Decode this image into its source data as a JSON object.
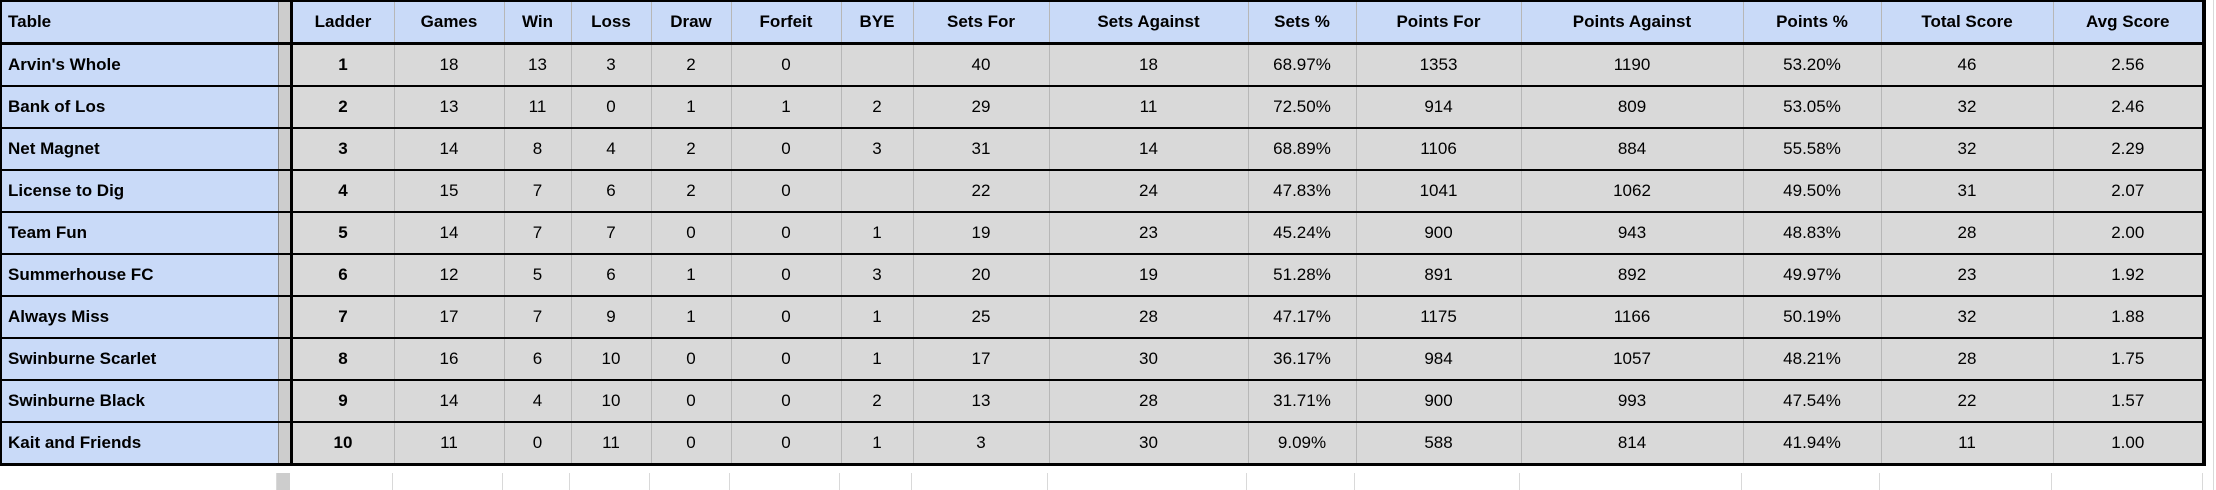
{
  "sheet": {
    "columns": [
      {
        "key": "name",
        "label": "Table"
      },
      {
        "key": "ladder",
        "label": "Ladder"
      },
      {
        "key": "games",
        "label": "Games"
      },
      {
        "key": "win",
        "label": "Win"
      },
      {
        "key": "loss",
        "label": "Loss"
      },
      {
        "key": "draw",
        "label": "Draw"
      },
      {
        "key": "forfeit",
        "label": "Forfeit"
      },
      {
        "key": "bye",
        "label": "BYE"
      },
      {
        "key": "sets_for",
        "label": "Sets For"
      },
      {
        "key": "sets_against",
        "label": "Sets Against"
      },
      {
        "key": "sets_pct",
        "label": "Sets %"
      },
      {
        "key": "points_for",
        "label": "Points For"
      },
      {
        "key": "points_against",
        "label": "Points Against"
      },
      {
        "key": "points_pct",
        "label": "Points %"
      },
      {
        "key": "total_score",
        "label": "Total Score"
      },
      {
        "key": "avg_score",
        "label": "Avg Score"
      }
    ],
    "rows": [
      {
        "name": "Arvin's Whole",
        "ladder": 1,
        "games": 18,
        "win": 13,
        "loss": 3,
        "draw": 2,
        "forfeit": 0,
        "bye": "",
        "sets_for": 40,
        "sets_against": 18,
        "sets_pct": "68.97%",
        "points_for": 1353,
        "points_against": 1190,
        "points_pct": "53.20%",
        "total_score": 46,
        "avg_score": "2.56"
      },
      {
        "name": "Bank of Los",
        "ladder": 2,
        "games": 13,
        "win": 11,
        "loss": 0,
        "draw": 1,
        "forfeit": 1,
        "bye": 2,
        "sets_for": 29,
        "sets_against": 11,
        "sets_pct": "72.50%",
        "points_for": 914,
        "points_against": 809,
        "points_pct": "53.05%",
        "total_score": 32,
        "avg_score": "2.46"
      },
      {
        "name": "Net Magnet",
        "ladder": 3,
        "games": 14,
        "win": 8,
        "loss": 4,
        "draw": 2,
        "forfeit": 0,
        "bye": 3,
        "sets_for": 31,
        "sets_against": 14,
        "sets_pct": "68.89%",
        "points_for": 1106,
        "points_against": 884,
        "points_pct": "55.58%",
        "total_score": 32,
        "avg_score": "2.29"
      },
      {
        "name": "License to Dig",
        "ladder": 4,
        "games": 15,
        "win": 7,
        "loss": 6,
        "draw": 2,
        "forfeit": 0,
        "bye": "",
        "sets_for": 22,
        "sets_against": 24,
        "sets_pct": "47.83%",
        "points_for": 1041,
        "points_against": 1062,
        "points_pct": "49.50%",
        "total_score": 31,
        "avg_score": "2.07"
      },
      {
        "name": "Team Fun",
        "ladder": 5,
        "games": 14,
        "win": 7,
        "loss": 7,
        "draw": 0,
        "forfeit": 0,
        "bye": 1,
        "sets_for": 19,
        "sets_against": 23,
        "sets_pct": "45.24%",
        "points_for": 900,
        "points_against": 943,
        "points_pct": "48.83%",
        "total_score": 28,
        "avg_score": "2.00"
      },
      {
        "name": "Summerhouse FC",
        "ladder": 6,
        "games": 12,
        "win": 5,
        "loss": 6,
        "draw": 1,
        "forfeit": 0,
        "bye": 3,
        "sets_for": 20,
        "sets_against": 19,
        "sets_pct": "51.28%",
        "points_for": 891,
        "points_against": 892,
        "points_pct": "49.97%",
        "total_score": 23,
        "avg_score": "1.92"
      },
      {
        "name": "Always Miss",
        "ladder": 7,
        "games": 17,
        "win": 7,
        "loss": 9,
        "draw": 1,
        "forfeit": 0,
        "bye": 1,
        "sets_for": 25,
        "sets_against": 28,
        "sets_pct": "47.17%",
        "points_for": 1175,
        "points_against": 1166,
        "points_pct": "50.19%",
        "total_score": 32,
        "avg_score": "1.88"
      },
      {
        "name": "Swinburne Scarlet",
        "ladder": 8,
        "games": 16,
        "win": 6,
        "loss": 10,
        "draw": 0,
        "forfeit": 0,
        "bye": 1,
        "sets_for": 17,
        "sets_against": 30,
        "sets_pct": "36.17%",
        "points_for": 984,
        "points_against": 1057,
        "points_pct": "48.21%",
        "total_score": 28,
        "avg_score": "1.75"
      },
      {
        "name": "Swinburne Black",
        "ladder": 9,
        "games": 14,
        "win": 4,
        "loss": 10,
        "draw": 0,
        "forfeit": 0,
        "bye": 2,
        "sets_for": 13,
        "sets_against": 28,
        "sets_pct": "31.71%",
        "points_for": 900,
        "points_against": 993,
        "points_pct": "47.54%",
        "total_score": 22,
        "avg_score": "1.57"
      },
      {
        "name": "Kait and Friends",
        "ladder": 10,
        "games": 11,
        "win": 0,
        "loss": 11,
        "draw": 0,
        "forfeit": 0,
        "bye": 1,
        "sets_for": 3,
        "sets_against": 30,
        "sets_pct": "9.09%",
        "points_for": 588,
        "points_against": 814,
        "points_pct": "41.94%",
        "total_score": 11,
        "avg_score": "1.00"
      }
    ]
  },
  "colors": {
    "header_bg": "#c9daf8",
    "team_column_bg": "#c9daf8",
    "data_cell_bg": "#d9d9d9",
    "separator_bg": "#cdcdcd",
    "row_border": "#000000",
    "gridline": "#b7b7b7"
  }
}
